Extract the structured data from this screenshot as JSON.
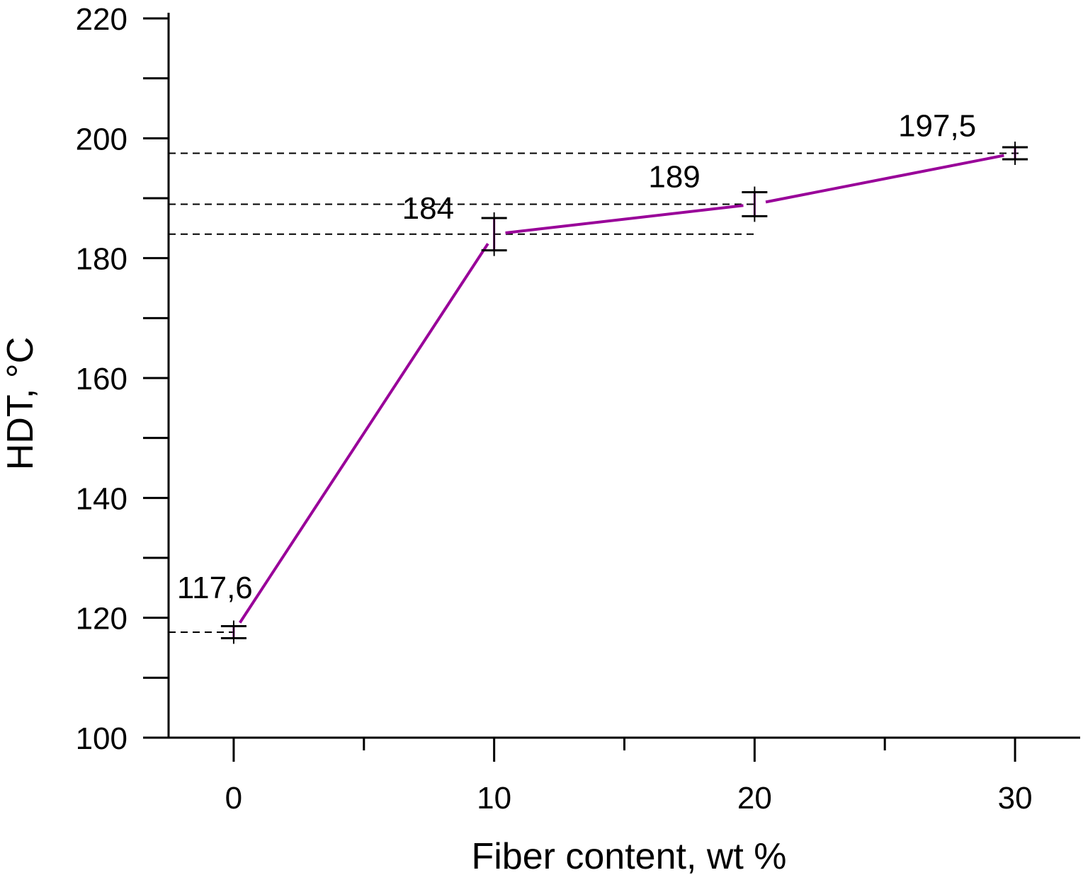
{
  "chart_data": {
    "type": "line",
    "xlabel": "Fiber content, wt %",
    "ylabel": "HDT, °C",
    "xlim": [
      -2.5,
      32.5
    ],
    "ylim": [
      100,
      220
    ],
    "x_ticks": [
      0,
      10,
      20,
      30
    ],
    "x_minor_ticks": [
      5,
      15,
      25
    ],
    "y_ticks": [
      100,
      120,
      140,
      160,
      180,
      200,
      220
    ],
    "y_minor_ticks": [
      110,
      130,
      150,
      170,
      190,
      210
    ],
    "x_tick_labels": [
      "0",
      "10",
      "20",
      "30"
    ],
    "y_tick_labels": [
      "100",
      "120",
      "140",
      "160",
      "180",
      "200",
      "220"
    ],
    "grid": false,
    "line_color": "#990099",
    "series": [
      {
        "x": [
          0,
          10,
          20,
          30
        ],
        "y": [
          117.6,
          184,
          189,
          197.5
        ],
        "error": [
          1.0,
          2.7,
          2.0,
          1.0
        ],
        "labels": [
          "117,6",
          "184",
          "189",
          "197,5"
        ]
      }
    ],
    "reference_lines": [
      117.6,
      184,
      189,
      197.5
    ]
  }
}
